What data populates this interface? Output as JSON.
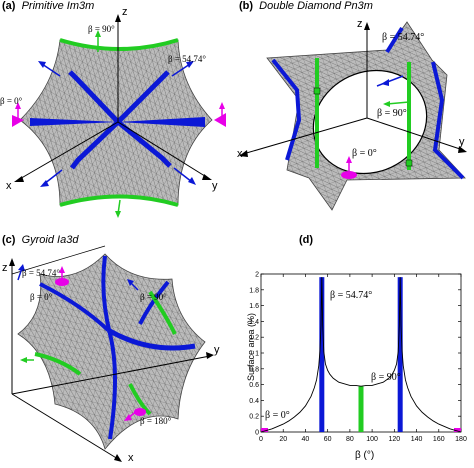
{
  "panels": {
    "a": {
      "letter": "(a)",
      "title": "Primitive Im3m",
      "beta_90": "β = 90°",
      "beta_5474": "β = 54.74°",
      "beta_0": "β = 0°",
      "axis_x": "x",
      "axis_y": "y",
      "axis_z": "z"
    },
    "b": {
      "letter": "(b)",
      "title": "Double Diamond Pn3m",
      "beta_5474": "β = 54.74°",
      "beta_90": "β = 90°",
      "beta_0": "β = 0°",
      "axis_x": "x",
      "axis_y": "y",
      "axis_z": "z"
    },
    "c": {
      "letter": "(c)",
      "title": "Gyroid Ia3d",
      "beta_5474": "β = 54.74°",
      "beta_0": "β = 0°",
      "beta_90": "β = 90°",
      "beta_180": "β = 180°",
      "axis_x": "x",
      "axis_y": "y",
      "axis_z": "z"
    },
    "d": {
      "letter": "(d)",
      "beta_5474": "β = 54.74°",
      "beta_90": "β = 90°",
      "beta_0": "β = 0°"
    }
  },
  "colors": {
    "surface": "#b8b8b8",
    "mesh": "#5a5a5a",
    "blue": "#0b18d6",
    "green": "#22cc22",
    "magenta": "#e800e8"
  },
  "chart_data": {
    "type": "line",
    "xlabel": "β (°)",
    "ylabel": "Surface area (%)",
    "xlim": [
      0,
      180
    ],
    "ylim": [
      0,
      2
    ],
    "xticks": [
      "0",
      "20",
      "40",
      "60",
      "80",
      "100",
      "120",
      "140",
      "160",
      "180"
    ],
    "yticks": [
      "0",
      "0.2",
      "0.4",
      "0.6",
      "0.8",
      "1",
      "1.2",
      "1.4",
      "1.6",
      "1.8",
      "2"
    ],
    "curve": {
      "x": [
        0,
        5,
        10,
        15,
        20,
        25,
        30,
        35,
        40,
        45,
        48,
        50,
        52,
        53,
        54,
        54.74,
        55.5,
        56.5,
        58,
        60,
        62,
        65,
        70,
        75,
        80,
        85,
        90,
        95,
        100,
        105,
        110,
        115,
        118,
        120,
        122,
        123.5,
        124.5,
        125.26,
        126,
        127,
        128,
        130,
        132,
        135,
        140,
        145,
        150,
        155,
        160,
        165,
        170,
        175,
        180
      ],
      "y": [
        0.0,
        0.02,
        0.04,
        0.07,
        0.1,
        0.14,
        0.19,
        0.25,
        0.33,
        0.45,
        0.56,
        0.66,
        0.84,
        1.02,
        1.35,
        1.96,
        1.35,
        1.02,
        0.86,
        0.78,
        0.73,
        0.68,
        0.63,
        0.61,
        0.59,
        0.59,
        0.58,
        0.59,
        0.59,
        0.61,
        0.63,
        0.68,
        0.73,
        0.78,
        0.86,
        1.02,
        1.35,
        1.96,
        1.35,
        1.02,
        0.84,
        0.66,
        0.56,
        0.45,
        0.33,
        0.25,
        0.19,
        0.14,
        0.1,
        0.07,
        0.04,
        0.02,
        0.0
      ]
    },
    "bars": [
      {
        "x": 54.74,
        "y": 1.96,
        "color": "#0b18d6"
      },
      {
        "x": 90,
        "y": 0.58,
        "color": "#22cc22"
      },
      {
        "x": 125.26,
        "y": 1.96,
        "color": "#0b18d6"
      }
    ],
    "end_markers": [
      {
        "x": 0,
        "color": "#e800e8"
      },
      {
        "x": 180,
        "color": "#e800e8"
      }
    ]
  }
}
